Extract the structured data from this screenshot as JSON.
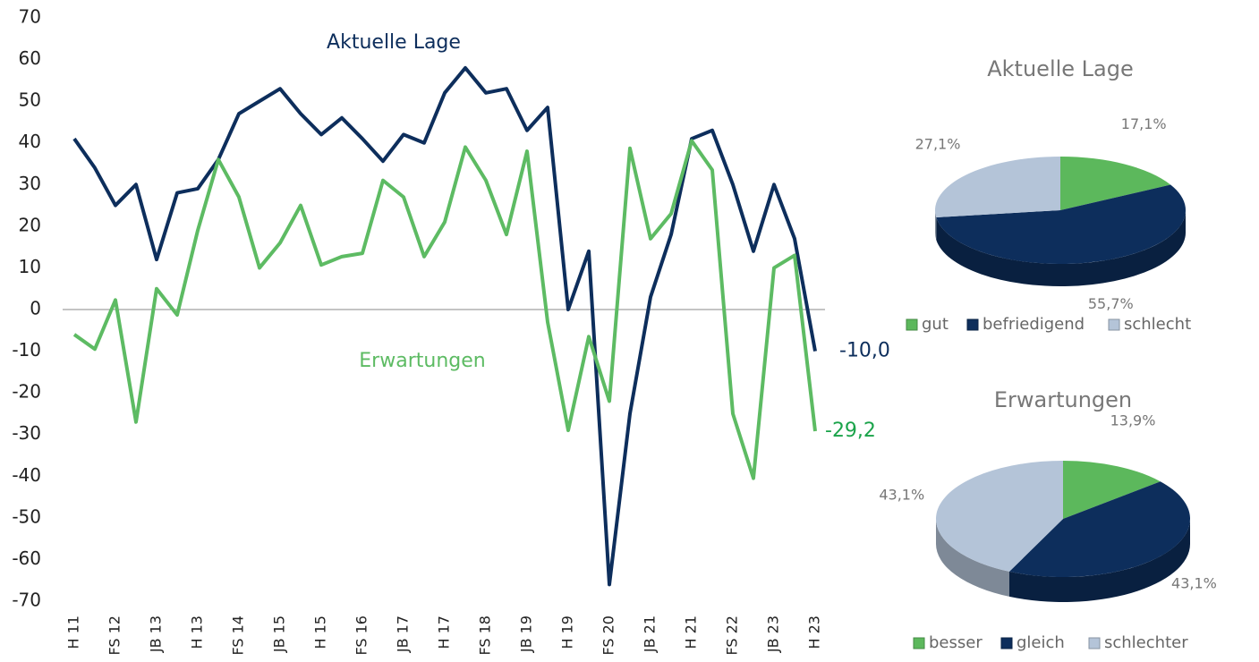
{
  "chart_data": [
    {
      "type": "line",
      "categories": [
        "H 11",
        null,
        "FS 12",
        null,
        "JB 13",
        null,
        "H 13",
        null,
        "FS 14",
        null,
        "JB 15",
        null,
        "H 15",
        null,
        "FS 16",
        null,
        "JB 17",
        null,
        "H 17",
        null,
        "FS 18",
        null,
        "JB 19",
        null,
        "H 19",
        null,
        "FS 20",
        null,
        "JB 21",
        null,
        "H 21",
        null,
        "FS 22",
        null,
        "JB 23",
        null,
        "H 23"
      ],
      "series": [
        {
          "name": "Aktuelle Lage",
          "color": "#0d2e5c",
          "values": [
            41,
            34,
            25,
            30,
            12,
            28,
            29,
            36,
            47,
            50,
            53,
            47,
            42,
            46,
            41,
            35.6,
            42,
            40,
            52,
            58,
            52,
            53,
            43,
            48.5,
            0,
            14,
            -66,
            -25,
            3,
            18,
            41,
            43,
            30,
            14,
            30,
            17,
            -10
          ],
          "value_labels": [
            null,
            null,
            null,
            null,
            null,
            null,
            null,
            null,
            null,
            null,
            null,
            null,
            null,
            null,
            null,
            null,
            null,
            null,
            null,
            null,
            null,
            null,
            null,
            null,
            null,
            null,
            null,
            null,
            null,
            null,
            null,
            null,
            null,
            null,
            null,
            null,
            "-10,0"
          ]
        },
        {
          "name": "Erwartungen",
          "color": "#5dbb63",
          "values": [
            -6,
            -9.5,
            2.3,
            -27,
            5,
            -1.3,
            19,
            36,
            27,
            10,
            16,
            25,
            10.7,
            12.7,
            13.5,
            31,
            27,
            12.7,
            21,
            39,
            31,
            18,
            38,
            -3,
            -29,
            -6.5,
            -22,
            38.7,
            17,
            23,
            40.5,
            33.5,
            -25,
            -40.5,
            10,
            13,
            -29.2
          ],
          "value_labels": [
            null,
            null,
            null,
            null,
            null,
            null,
            null,
            null,
            null,
            null,
            null,
            null,
            null,
            null,
            null,
            null,
            null,
            null,
            null,
            null,
            null,
            null,
            null,
            null,
            null,
            null,
            null,
            null,
            null,
            null,
            null,
            null,
            null,
            null,
            null,
            null,
            "-29,2"
          ]
        }
      ],
      "ylim": [
        -70,
        70
      ],
      "yticks": [
        -70,
        -60,
        -50,
        -40,
        -30,
        -20,
        -10,
        0,
        10,
        20,
        30,
        40,
        50,
        60,
        70
      ],
      "grid": false
    },
    {
      "type": "pie",
      "title": "Aktuelle Lage",
      "categories": [
        "gut",
        "befriedigend",
        "schlecht"
      ],
      "values": [
        17.1,
        55.7,
        27.1
      ],
      "value_labels": [
        "17,1%",
        "55,7%",
        "27,1%"
      ],
      "colors": [
        "#5cb85c",
        "#0d2e5c",
        "#b4c4d8"
      ]
    },
    {
      "type": "pie",
      "title": "Erwartungen",
      "categories": [
        "besser",
        "gleich",
        "schlechter"
      ],
      "values": [
        13.9,
        43.1,
        43.1
      ],
      "value_labels": [
        "13,9%",
        "43,1%",
        "43,1%"
      ],
      "colors": [
        "#5cb85c",
        "#0d2e5c",
        "#b4c4d8"
      ]
    }
  ]
}
